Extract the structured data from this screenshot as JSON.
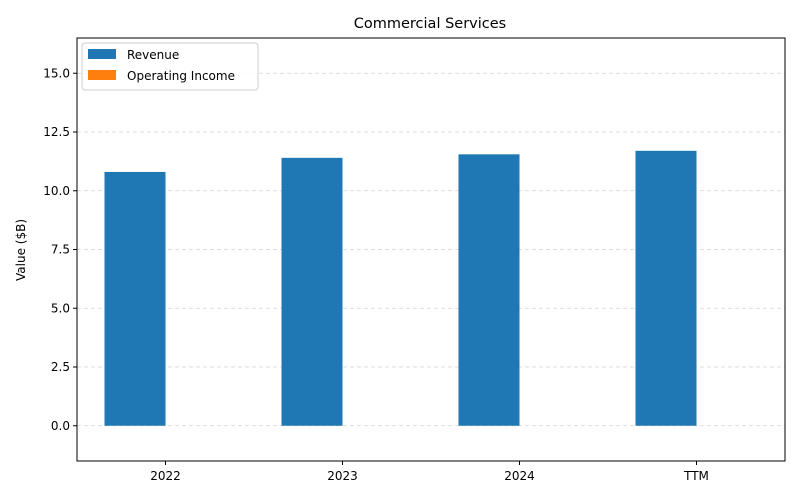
{
  "chart_data": {
    "type": "bar",
    "title": "Commercial Services",
    "xlabel": "",
    "ylabel": "Value ($B)",
    "categories": [
      "2022",
      "2023",
      "2024",
      "TTM"
    ],
    "series": [
      {
        "name": "Revenue",
        "values": [
          10.8,
          11.4,
          11.55,
          11.7
        ],
        "color": "#1f77b4"
      },
      {
        "name": "Operating Income",
        "values": [
          0,
          0,
          0,
          0
        ],
        "color": "#ff7f0e"
      }
    ],
    "ylim": [
      -1.5,
      16.5
    ],
    "yticks": [
      0.0,
      2.5,
      5.0,
      7.5,
      10.0,
      12.5,
      15.0
    ],
    "ytick_labels": [
      "0.0",
      "2.5",
      "5.0",
      "7.5",
      "10.0",
      "12.5",
      "15.0"
    ],
    "grid": {
      "y": true,
      "x": false,
      "style": "dashed",
      "color": "#d3d3d3"
    },
    "legend": "top-left"
  }
}
